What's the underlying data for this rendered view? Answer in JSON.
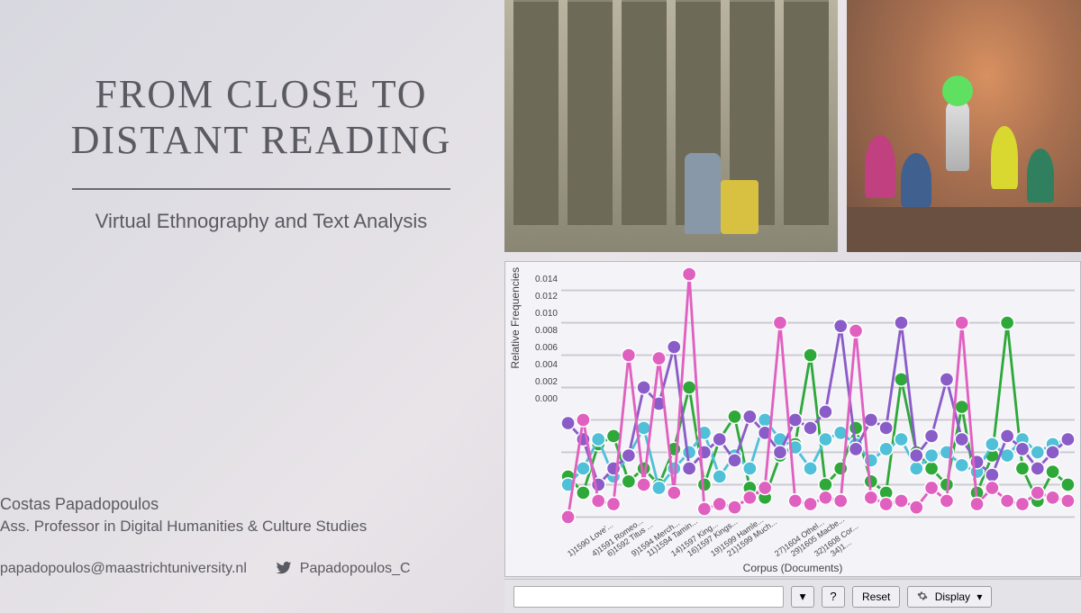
{
  "title_line1": "FROM CLOSE TO",
  "title_line2": "DISTANT READING",
  "subtitle": "Virtual Ethnography and Text Analysis",
  "author": {
    "name": "Costas Papadopoulos",
    "role": "Ass. Professor in Digital Humanities & Culture Studies",
    "email": "papadopoulos@maastrichtuniversity.nl",
    "twitter": "Papadopoulos_C"
  },
  "colors": {
    "slide_bg_from": "#d8d8e0",
    "slide_bg_to": "#d4d0d8",
    "text": "#5a5a62",
    "chart_bg": "#f4f4f8",
    "grid": "#c8c8d0",
    "series_green": "#2fa83a",
    "series_cyan": "#4fc0d8",
    "series_purple": "#8a5cc8",
    "series_pink": "#e060c0"
  },
  "chart": {
    "type": "line",
    "ylabel": "Relative Frequencies",
    "xlabel": "Corpus (Documents)",
    "ylim": [
      0.0,
      0.015
    ],
    "yticks": [
      0.0,
      0.002,
      0.004,
      0.006,
      0.008,
      0.01,
      0.012,
      0.014
    ],
    "x_categories": [
      "1)1590 Love'...",
      "4)1591 Romeo...",
      "6)1592 Titus ...",
      "9)1594 Merch...",
      "11)1594 Tamin...",
      "14)1597 King...",
      "16)1597 Kings...",
      "19)1599 Hamle...",
      "21)1599 Much...",
      "27)1604 Othel...",
      "29)1605 Macbe...",
      "32)1608 Cor...",
      "34)1..."
    ],
    "n_points": 34,
    "marker": "circle",
    "marker_size": 4,
    "line_width": 1.5,
    "series": {
      "green": [
        0.0025,
        0.0015,
        0.0045,
        0.005,
        0.0022,
        0.003,
        0.002,
        0.0042,
        0.008,
        0.002,
        0.0048,
        0.0062,
        0.0018,
        0.0012,
        0.0038,
        0.0045,
        0.01,
        0.002,
        0.003,
        0.0055,
        0.0022,
        0.0015,
        0.0085,
        0.004,
        0.003,
        0.002,
        0.0068,
        0.0015,
        0.0038,
        0.012,
        0.003,
        0.001,
        0.0028,
        0.002
      ],
      "cyan": [
        0.002,
        0.003,
        0.0048,
        0.0025,
        0.0038,
        0.0055,
        0.0018,
        0.003,
        0.004,
        0.0052,
        0.0025,
        0.0038,
        0.003,
        0.006,
        0.0048,
        0.0043,
        0.003,
        0.0048,
        0.0052,
        0.0045,
        0.0035,
        0.0042,
        0.0048,
        0.003,
        0.0038,
        0.004,
        0.0032,
        0.0028,
        0.0045,
        0.0038,
        0.0048,
        0.004,
        0.0045,
        0.0048
      ],
      "purple": [
        0.0058,
        0.0048,
        0.002,
        0.003,
        0.0038,
        0.008,
        0.007,
        0.0105,
        0.003,
        0.004,
        0.0048,
        0.0035,
        0.0062,
        0.0052,
        0.004,
        0.006,
        0.0055,
        0.0065,
        0.0118,
        0.0042,
        0.006,
        0.0055,
        0.012,
        0.0038,
        0.005,
        0.0085,
        0.0048,
        0.0034,
        0.0026,
        0.005,
        0.0042,
        0.003,
        0.004,
        0.0048
      ],
      "pink": [
        0.0,
        0.006,
        0.001,
        0.0008,
        0.01,
        0.002,
        0.0098,
        0.0015,
        0.015,
        0.0005,
        0.0008,
        0.0006,
        0.0012,
        0.0018,
        0.012,
        0.001,
        0.0008,
        0.0012,
        0.001,
        0.0115,
        0.0012,
        0.0008,
        0.001,
        0.0006,
        0.0018,
        0.001,
        0.012,
        0.0008,
        0.0018,
        0.001,
        0.0008,
        0.0015,
        0.0012,
        0.001
      ]
    }
  },
  "toolbar": {
    "dropdown_icon": "▾",
    "help": "?",
    "reset": "Reset",
    "display": "Display",
    "display_caret": "▾"
  },
  "images": {
    "archive_alt": "warehouse-archive-shelves",
    "vr_alt": "virtual-reality-room-scene"
  }
}
